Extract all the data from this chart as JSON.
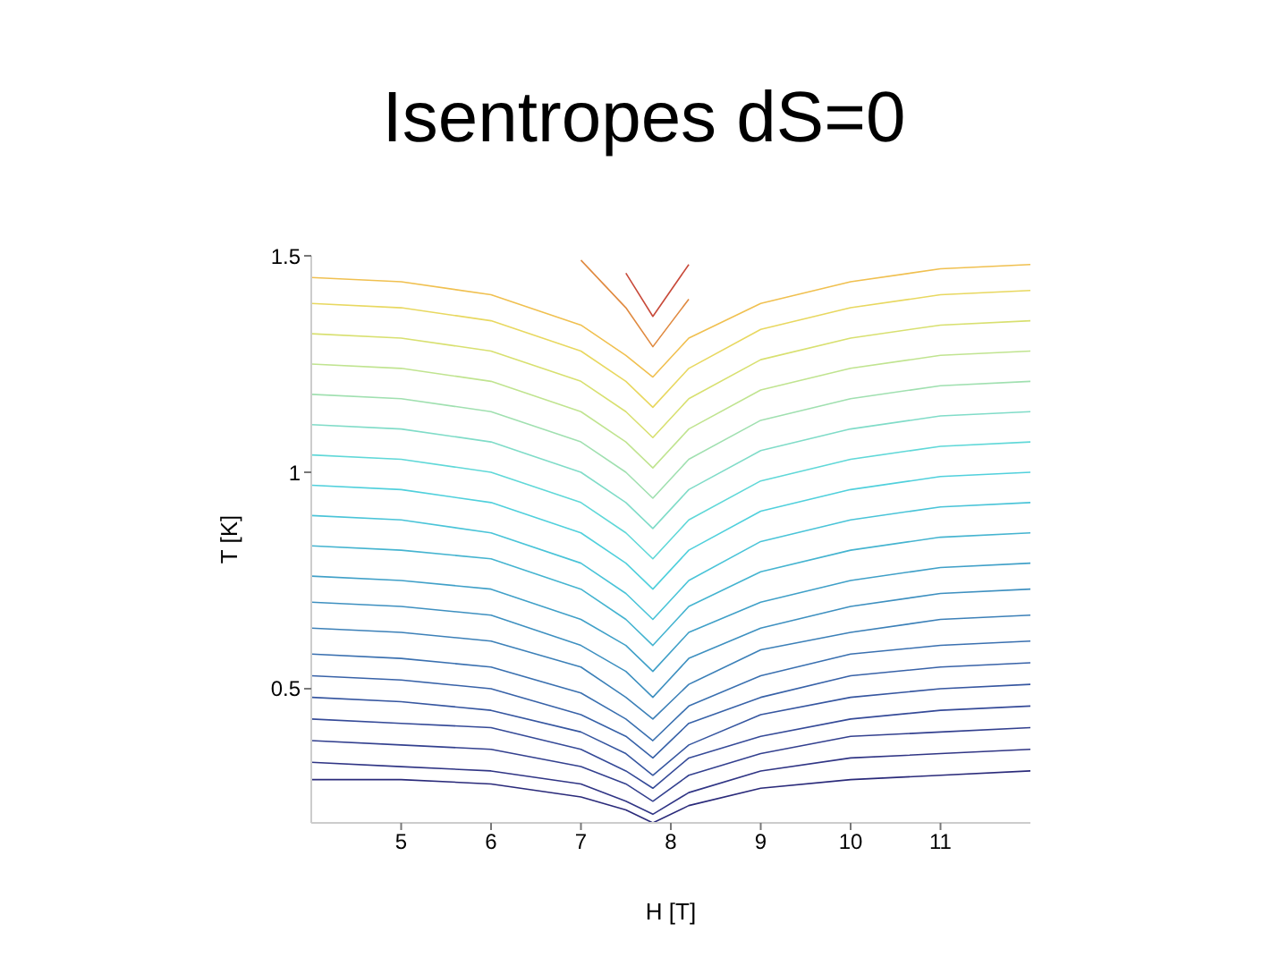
{
  "chart_data": {
    "type": "line",
    "title": "Isentropes dS=0",
    "xlabel": "H [T]",
    "ylabel": "T [K]",
    "x": [
      4,
      5,
      6,
      7,
      7.5,
      7.8,
      8.2,
      9,
      10,
      11,
      12
    ],
    "xlim": [
      4,
      12
    ],
    "xticks": [
      5,
      6,
      7,
      8,
      9,
      10,
      11
    ],
    "ylim": [
      0.19,
      1.5
    ],
    "yticks": [
      0.5,
      1,
      1.5
    ],
    "grid": false,
    "marker": "none",
    "line_style": "solid",
    "series": [
      {
        "color": "#2a2a7a",
        "values": [
          0.29,
          0.29,
          0.28,
          0.25,
          0.22,
          0.19,
          0.23,
          0.27,
          0.29,
          0.3,
          0.31
        ]
      },
      {
        "color": "#303585",
        "values": [
          0.33,
          0.32,
          0.31,
          0.28,
          0.24,
          0.21,
          0.26,
          0.31,
          0.34,
          0.35,
          0.36
        ]
      },
      {
        "color": "#33408f",
        "values": [
          0.38,
          0.37,
          0.36,
          0.32,
          0.28,
          0.24,
          0.3,
          0.35,
          0.39,
          0.4,
          0.41
        ]
      },
      {
        "color": "#354a98",
        "values": [
          0.43,
          0.42,
          0.41,
          0.36,
          0.31,
          0.27,
          0.34,
          0.39,
          0.43,
          0.45,
          0.46
        ]
      },
      {
        "color": "#3656a0",
        "values": [
          0.48,
          0.47,
          0.45,
          0.4,
          0.35,
          0.3,
          0.37,
          0.44,
          0.48,
          0.5,
          0.51
        ]
      },
      {
        "color": "#3862a8",
        "values": [
          0.53,
          0.52,
          0.5,
          0.44,
          0.39,
          0.34,
          0.42,
          0.48,
          0.53,
          0.55,
          0.56
        ]
      },
      {
        "color": "#3a70b0",
        "values": [
          0.58,
          0.57,
          0.55,
          0.49,
          0.43,
          0.38,
          0.46,
          0.53,
          0.58,
          0.6,
          0.61
        ]
      },
      {
        "color": "#3c80b8",
        "values": [
          0.64,
          0.63,
          0.61,
          0.55,
          0.48,
          0.43,
          0.51,
          0.59,
          0.63,
          0.66,
          0.67
        ]
      },
      {
        "color": "#3e90c0",
        "values": [
          0.7,
          0.69,
          0.67,
          0.6,
          0.54,
          0.48,
          0.57,
          0.64,
          0.69,
          0.72,
          0.73
        ]
      },
      {
        "color": "#40a0c8",
        "values": [
          0.76,
          0.75,
          0.73,
          0.66,
          0.6,
          0.54,
          0.63,
          0.7,
          0.75,
          0.78,
          0.79
        ]
      },
      {
        "color": "#45b4d0",
        "values": [
          0.83,
          0.82,
          0.8,
          0.73,
          0.66,
          0.6,
          0.69,
          0.77,
          0.82,
          0.85,
          0.86
        ]
      },
      {
        "color": "#4ac4d8",
        "values": [
          0.9,
          0.89,
          0.86,
          0.79,
          0.72,
          0.66,
          0.75,
          0.84,
          0.89,
          0.92,
          0.93
        ]
      },
      {
        "color": "#50d0dc",
        "values": [
          0.97,
          0.96,
          0.93,
          0.86,
          0.79,
          0.73,
          0.82,
          0.91,
          0.96,
          0.99,
          1.0
        ]
      },
      {
        "color": "#60d8d8",
        "values": [
          1.04,
          1.03,
          1.0,
          0.93,
          0.86,
          0.8,
          0.89,
          0.98,
          1.03,
          1.06,
          1.07
        ]
      },
      {
        "color": "#80dcc8",
        "values": [
          1.11,
          1.1,
          1.07,
          1.0,
          0.93,
          0.87,
          0.96,
          1.05,
          1.1,
          1.13,
          1.14
        ]
      },
      {
        "color": "#a0e0b0",
        "values": [
          1.18,
          1.17,
          1.14,
          1.07,
          1.0,
          0.94,
          1.03,
          1.12,
          1.17,
          1.2,
          1.21
        ]
      },
      {
        "color": "#c0e490",
        "values": [
          1.25,
          1.24,
          1.21,
          1.14,
          1.07,
          1.01,
          1.1,
          1.19,
          1.24,
          1.27,
          1.28
        ]
      },
      {
        "color": "#d8e070",
        "values": [
          1.32,
          1.31,
          1.28,
          1.21,
          1.14,
          1.08,
          1.17,
          1.26,
          1.31,
          1.34,
          1.35
        ]
      },
      {
        "color": "#e8d860",
        "values": [
          1.39,
          1.38,
          1.35,
          1.28,
          1.21,
          1.15,
          1.24,
          1.33,
          1.38,
          1.41,
          1.42
        ]
      },
      {
        "color": "#f0c050",
        "values": [
          1.45,
          1.44,
          1.41,
          1.34,
          1.27,
          1.22,
          1.31,
          1.39,
          1.44,
          1.47,
          1.48
        ]
      },
      {
        "color": "#e08a40",
        "values": [
          null,
          null,
          null,
          1.49,
          1.38,
          1.29,
          1.4,
          null,
          null,
          null,
          null
        ]
      },
      {
        "color": "#c84a3a",
        "values": [
          null,
          null,
          null,
          null,
          1.46,
          1.36,
          1.48,
          null,
          null,
          null,
          null
        ]
      }
    ]
  }
}
